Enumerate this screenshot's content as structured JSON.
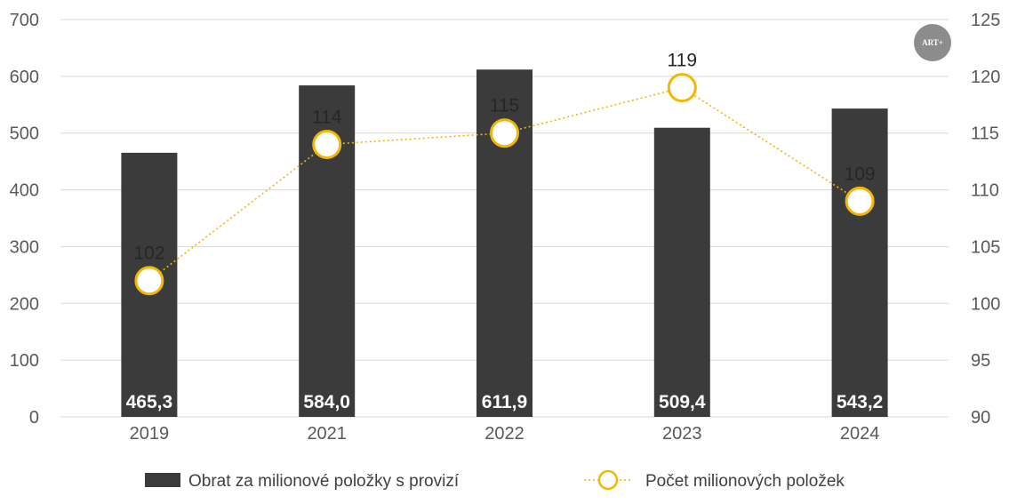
{
  "chart_data": {
    "type": "bar",
    "categories": [
      "2019",
      "2021",
      "2022",
      "2023",
      "2024"
    ],
    "series": [
      {
        "name": "Obrat za milionové položky s provizí",
        "type": "bar",
        "axis": "left",
        "values": [
          465.3,
          584.0,
          611.9,
          509.4,
          543.2
        ],
        "labels": [
          "465,3",
          "584,0",
          "611,9",
          "509,4",
          "543,2"
        ],
        "color": "#3b3b3b"
      },
      {
        "name": "Počet milionových položek",
        "type": "line",
        "axis": "right",
        "values": [
          102,
          114,
          115,
          119,
          109
        ],
        "labels": [
          "102",
          "114",
          "115",
          "119",
          "109"
        ],
        "color": "#f2b705"
      }
    ],
    "y_left": {
      "min": 0,
      "max": 700,
      "ticks": [
        "0",
        "100",
        "200",
        "300",
        "400",
        "500",
        "600",
        "700"
      ]
    },
    "y_right": {
      "min": 90,
      "max": 125,
      "ticks": [
        "90",
        "95",
        "100",
        "105",
        "110",
        "115",
        "120",
        "125"
      ]
    },
    "grid": true,
    "legend": "bottom",
    "badge": "ART+"
  }
}
